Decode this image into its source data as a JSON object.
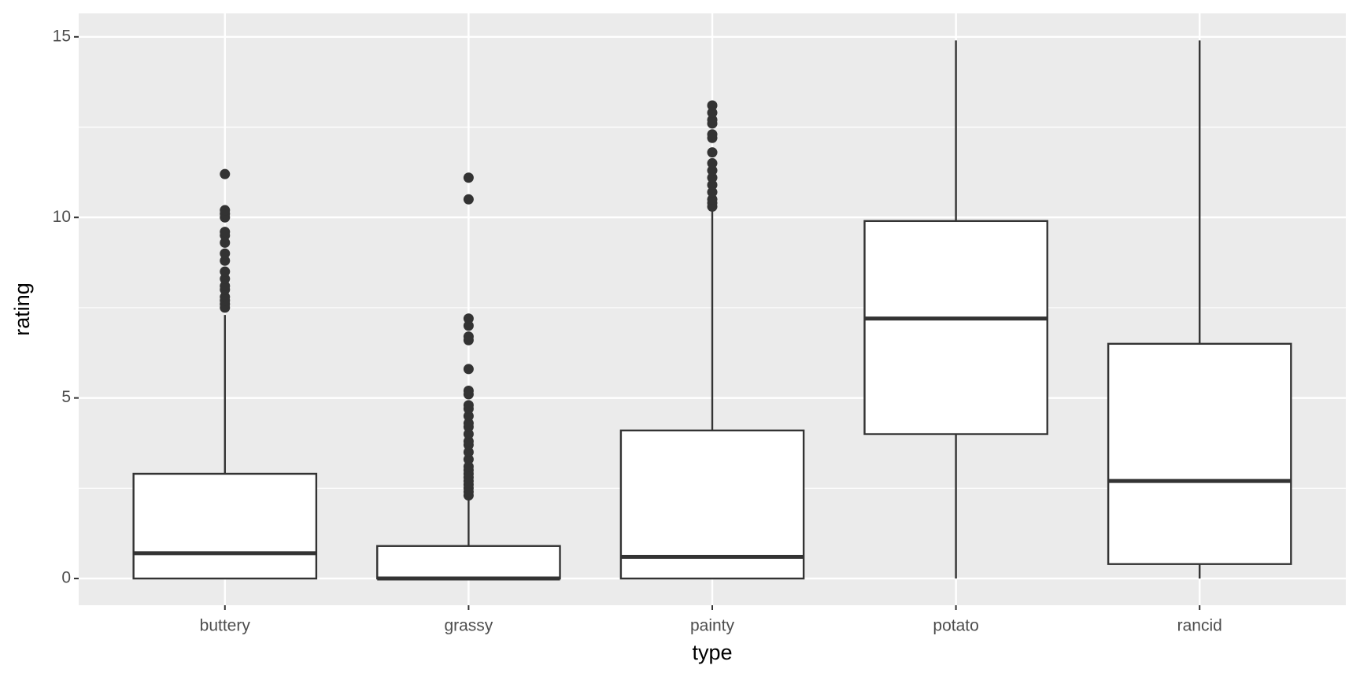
{
  "chart_data": {
    "type": "boxplot",
    "x_label": "type",
    "y_label": "rating",
    "categories": [
      "buttery",
      "grassy",
      "painty",
      "potato",
      "rancid"
    ],
    "boxes": [
      {
        "min": 0,
        "q1": 0,
        "median": 0.7,
        "q3": 2.9,
        "max": 7.3,
        "outliers": [
          7.5,
          7.6,
          7.7,
          7.8,
          8.0,
          8.1,
          8.3,
          8.5,
          8.8,
          9.0,
          9.3,
          9.5,
          9.6,
          10.0,
          10.1,
          10.2,
          11.2
        ]
      },
      {
        "min": 0,
        "q1": 0,
        "median": 0,
        "q3": 0.9,
        "max": 2.2,
        "outliers": [
          2.3,
          2.4,
          2.5,
          2.6,
          2.7,
          2.8,
          2.9,
          3.0,
          3.1,
          3.3,
          3.5,
          3.7,
          3.8,
          4.0,
          4.2,
          4.3,
          4.5,
          4.7,
          4.8,
          5.1,
          5.2,
          5.8,
          6.6,
          6.7,
          7.0,
          7.2,
          10.5,
          11.1
        ]
      },
      {
        "min": 0,
        "q1": 0,
        "median": 0.6,
        "q3": 4.1,
        "max": 10.2,
        "outliers": [
          10.3,
          10.4,
          10.5,
          10.7,
          10.9,
          11.1,
          11.3,
          11.5,
          11.8,
          12.2,
          12.3,
          12.6,
          12.7,
          12.9,
          13.1
        ]
      },
      {
        "min": 0,
        "q1": 4.0,
        "median": 7.2,
        "q3": 9.9,
        "max": 14.9,
        "outliers": []
      },
      {
        "min": 0,
        "q1": 0.4,
        "median": 2.7,
        "q3": 6.5,
        "max": 14.9,
        "outliers": []
      }
    ],
    "box_fill": "#ffffff",
    "line_color": "#333333",
    "panel_color": "#ebebeb",
    "ylim": [
      -0.74,
      15.65
    ],
    "yticks": [
      0,
      5,
      10,
      15
    ],
    "grid": true,
    "minor_grid": true
  }
}
